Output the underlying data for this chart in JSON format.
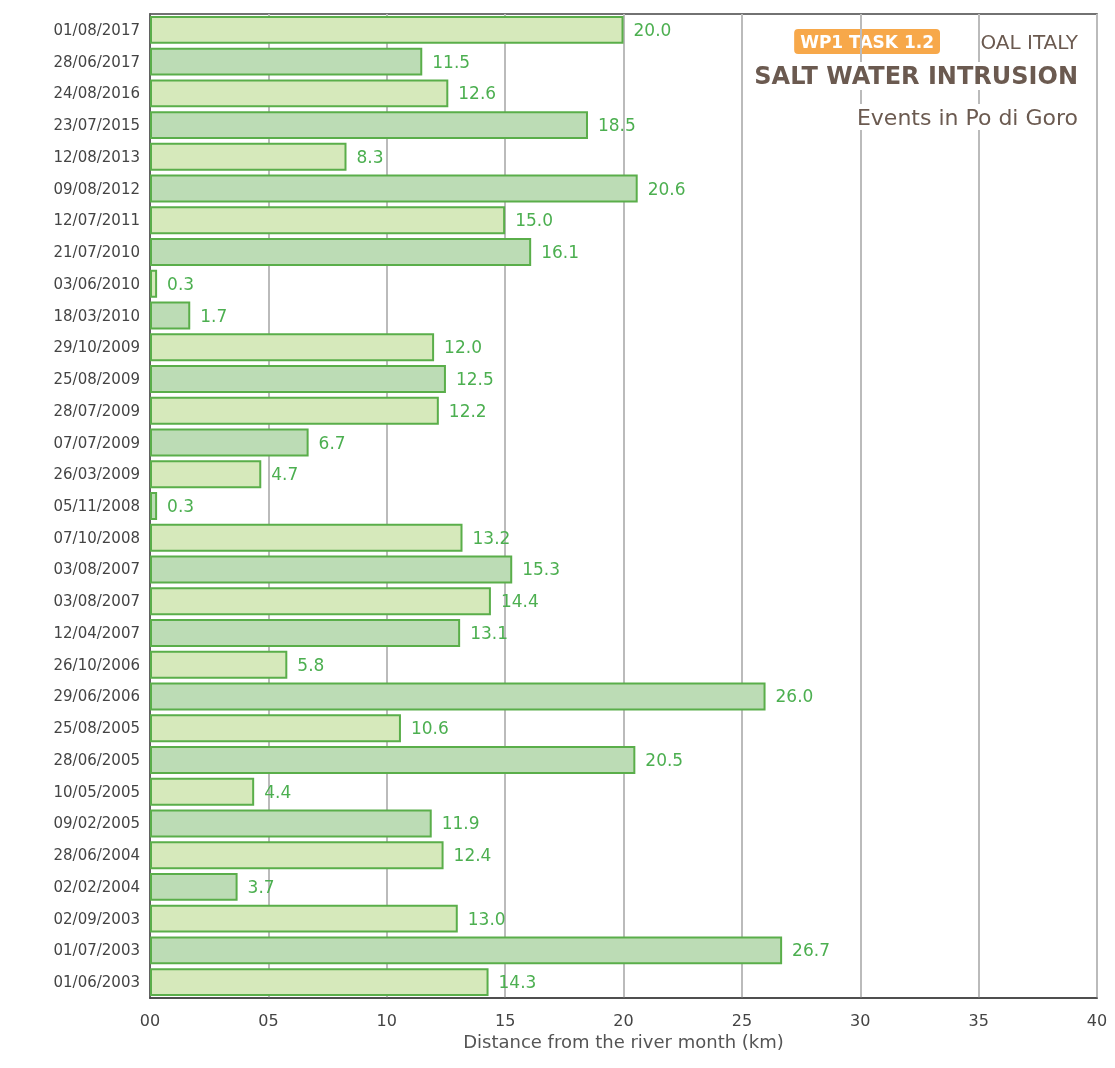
{
  "chart_data": {
    "type": "bar",
    "orientation": "horizontal",
    "title": "SALT WATER INTRUSION",
    "subtitle": "Events in Po di Goro",
    "annotations": [
      "WP1 TASK 1.2",
      "OAL ITALY"
    ],
    "xlabel": "Distance from the river month (km)",
    "categories": [
      "01/08/2017",
      "28/06/2017",
      "24/08/2016",
      "23/07/2015",
      "12/08/2013",
      "09/08/2012",
      "12/07/2011",
      "21/07/2010",
      "03/06/2010",
      "18/03/2010",
      "29/10/2009",
      "25/08/2009",
      "28/07/2009",
      "07/07/2009",
      "26/03/2009",
      "05/11/2008",
      "07/10/2008",
      "03/08/2007",
      "03/08/2007",
      "12/04/2007",
      "26/10/2006",
      "29/06/2006",
      "25/08/2005",
      "28/06/2005",
      "10/05/2005",
      "09/02/2005",
      "28/06/2004",
      "02/02/2004",
      "02/09/2003",
      "01/07/2003",
      "01/06/2003"
    ],
    "values": [
      20.0,
      11.5,
      12.6,
      18.5,
      8.3,
      20.6,
      15.0,
      16.1,
      0.3,
      1.7,
      12.0,
      12.5,
      12.2,
      6.7,
      4.7,
      0.3,
      13.2,
      15.3,
      14.4,
      13.1,
      5.8,
      26.0,
      10.6,
      20.5,
      4.4,
      11.9,
      12.4,
      3.7,
      13.0,
      26.7,
      14.3
    ],
    "value_labels": [
      "20.0",
      "11.5",
      "12.6",
      "18.5",
      "8.3",
      "20.6",
      "15.0",
      "16.1",
      "0.3",
      "1.7",
      "12.0",
      "12.5",
      "12.2",
      "6.7",
      "4.7",
      "0.3",
      "13.2",
      "15.3",
      "14.4",
      "13.1",
      "5.8",
      "26.0",
      "10.6",
      "20.5",
      "4.4",
      "11.9",
      "12.4",
      "3.7",
      "13.0",
      "26.7",
      "14.3"
    ],
    "colors": [
      "#d6e9bb",
      "#bcdcb5",
      "#d6e9bb",
      "#bcdcb5",
      "#d6e9bb",
      "#bcdcb5",
      "#d6e9bb",
      "#bcdcb5",
      "#d6e9bb",
      "#bcdcb5",
      "#d6e9bb",
      "#bcdcb5",
      "#d6e9bb",
      "#bcdcb5",
      "#d6e9bb",
      "#bcdcb5",
      "#d6e9bb",
      "#bcdcb5",
      "#d6e9bb",
      "#bcdcb5",
      "#d6e9bb",
      "#bcdcb5",
      "#d6e9bb",
      "#bcdcb5",
      "#d6e9bb",
      "#bcdcb5",
      "#d6e9bb",
      "#bcdcb5",
      "#d6e9bb",
      "#bcdcb5",
      "#d6e9bb"
    ],
    "xlim": [
      0,
      40
    ],
    "xticks": [
      {
        "value": 0,
        "label": "00"
      },
      {
        "value": 5,
        "label": "05"
      },
      {
        "value": 10,
        "label": "10"
      },
      {
        "value": 15,
        "label": "15"
      },
      {
        "value": 20,
        "label": "20"
      },
      {
        "value": 25,
        "label": "25"
      },
      {
        "value": 30,
        "label": "30"
      },
      {
        "value": 35,
        "label": "35"
      },
      {
        "value": 40,
        "label": "40"
      }
    ],
    "grid": "x"
  }
}
